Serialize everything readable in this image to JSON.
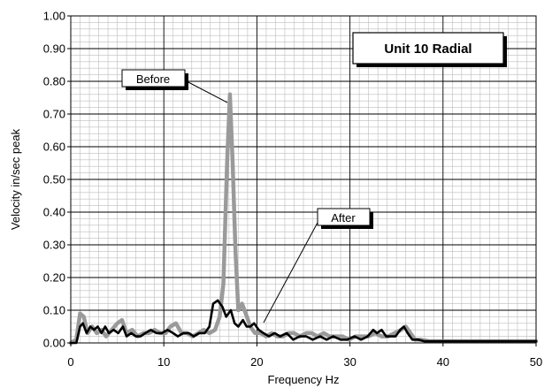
{
  "chart_data": {
    "type": "line",
    "title": "Unit 10 Radial",
    "xlabel": "Frequency Hz",
    "ylabel": "Velocity in/sec peak",
    "xlim": [
      0,
      50
    ],
    "ylim": [
      0,
      1.0
    ],
    "x_ticks": [
      "0",
      "10",
      "20",
      "30",
      "40",
      "50"
    ],
    "y_ticks": [
      "0.00",
      "0.10",
      "0.20",
      "0.30",
      "0.40",
      "0.50",
      "0.60",
      "0.70",
      "0.80",
      "0.90",
      "1.00"
    ],
    "grid": "on",
    "annotations": [
      "Before",
      "After"
    ],
    "series": [
      {
        "name": "Before",
        "color": "#9a9a9a",
        "points": [
          [
            0,
            0.0
          ],
          [
            0.6,
            0.01
          ],
          [
            1.0,
            0.09
          ],
          [
            1.4,
            0.08
          ],
          [
            1.8,
            0.03
          ],
          [
            2.3,
            0.05
          ],
          [
            2.8,
            0.03
          ],
          [
            3.3,
            0.04
          ],
          [
            3.8,
            0.02
          ],
          [
            4.4,
            0.04
          ],
          [
            5.0,
            0.06
          ],
          [
            5.5,
            0.07
          ],
          [
            6.0,
            0.03
          ],
          [
            6.6,
            0.04
          ],
          [
            7.2,
            0.02
          ],
          [
            7.8,
            0.03
          ],
          [
            8.4,
            0.03
          ],
          [
            9.0,
            0.04
          ],
          [
            9.6,
            0.03
          ],
          [
            10.2,
            0.03
          ],
          [
            10.7,
            0.05
          ],
          [
            11.3,
            0.06
          ],
          [
            11.9,
            0.03
          ],
          [
            12.5,
            0.03
          ],
          [
            13.1,
            0.02
          ],
          [
            13.7,
            0.03
          ],
          [
            14.3,
            0.04
          ],
          [
            14.9,
            0.03
          ],
          [
            15.5,
            0.04
          ],
          [
            16.0,
            0.08
          ],
          [
            16.4,
            0.18
          ],
          [
            16.8,
            0.55
          ],
          [
            17.1,
            0.76
          ],
          [
            17.4,
            0.55
          ],
          [
            17.7,
            0.28
          ],
          [
            18.0,
            0.1
          ],
          [
            18.4,
            0.12
          ],
          [
            18.8,
            0.09
          ],
          [
            19.3,
            0.05
          ],
          [
            19.8,
            0.03
          ],
          [
            20.4,
            0.03
          ],
          [
            21.0,
            0.02
          ],
          [
            21.6,
            0.03
          ],
          [
            22.2,
            0.02
          ],
          [
            22.8,
            0.02
          ],
          [
            23.4,
            0.03
          ],
          [
            24.0,
            0.03
          ],
          [
            24.6,
            0.02
          ],
          [
            25.3,
            0.03
          ],
          [
            25.9,
            0.03
          ],
          [
            26.5,
            0.02
          ],
          [
            27.2,
            0.03
          ],
          [
            27.8,
            0.02
          ],
          [
            28.5,
            0.02
          ],
          [
            29.2,
            0.02
          ],
          [
            29.9,
            0.01
          ],
          [
            30.6,
            0.02
          ],
          [
            31.3,
            0.02
          ],
          [
            32.0,
            0.02
          ],
          [
            32.7,
            0.03
          ],
          [
            33.4,
            0.02
          ],
          [
            34.1,
            0.02
          ],
          [
            34.8,
            0.03
          ],
          [
            35.5,
            0.04
          ],
          [
            36.0,
            0.05
          ],
          [
            36.5,
            0.03
          ],
          [
            37.0,
            0.01
          ],
          [
            37.6,
            0.01
          ],
          [
            38.5,
            0.005
          ],
          [
            40.0,
            0.005
          ],
          [
            42.0,
            0.005
          ],
          [
            44.0,
            0.005
          ],
          [
            46.0,
            0.005
          ],
          [
            48.0,
            0.005
          ],
          [
            50.0,
            0.005
          ]
        ]
      },
      {
        "name": "After",
        "color": "#000000",
        "points": [
          [
            0,
            0.0
          ],
          [
            0.6,
            0.0
          ],
          [
            1.0,
            0.05
          ],
          [
            1.3,
            0.06
          ],
          [
            1.7,
            0.03
          ],
          [
            2.1,
            0.05
          ],
          [
            2.5,
            0.04
          ],
          [
            2.9,
            0.05
          ],
          [
            3.3,
            0.03
          ],
          [
            3.7,
            0.05
          ],
          [
            4.1,
            0.03
          ],
          [
            4.6,
            0.04
          ],
          [
            5.1,
            0.03
          ],
          [
            5.6,
            0.05
          ],
          [
            6.0,
            0.02
          ],
          [
            6.5,
            0.03
          ],
          [
            7.0,
            0.02
          ],
          [
            7.5,
            0.02
          ],
          [
            8.0,
            0.03
          ],
          [
            8.6,
            0.04
          ],
          [
            9.2,
            0.03
          ],
          [
            9.8,
            0.03
          ],
          [
            10.4,
            0.04
          ],
          [
            11.0,
            0.03
          ],
          [
            11.5,
            0.02
          ],
          [
            12.1,
            0.03
          ],
          [
            12.7,
            0.03
          ],
          [
            13.2,
            0.02
          ],
          [
            13.8,
            0.03
          ],
          [
            14.4,
            0.03
          ],
          [
            14.9,
            0.05
          ],
          [
            15.3,
            0.12
          ],
          [
            15.8,
            0.13
          ],
          [
            16.3,
            0.11
          ],
          [
            16.7,
            0.08
          ],
          [
            17.2,
            0.1
          ],
          [
            17.6,
            0.06
          ],
          [
            18.0,
            0.05
          ],
          [
            18.5,
            0.07
          ],
          [
            18.9,
            0.05
          ],
          [
            19.3,
            0.05
          ],
          [
            19.7,
            0.06
          ],
          [
            20.2,
            0.04
          ],
          [
            20.7,
            0.03
          ],
          [
            21.3,
            0.02
          ],
          [
            21.9,
            0.03
          ],
          [
            22.5,
            0.02
          ],
          [
            23.2,
            0.03
          ],
          [
            23.9,
            0.01
          ],
          [
            24.6,
            0.02
          ],
          [
            25.3,
            0.02
          ],
          [
            26.0,
            0.01
          ],
          [
            26.8,
            0.02
          ],
          [
            27.5,
            0.01
          ],
          [
            28.2,
            0.02
          ],
          [
            29.0,
            0.01
          ],
          [
            29.7,
            0.01
          ],
          [
            30.5,
            0.02
          ],
          [
            31.2,
            0.01
          ],
          [
            31.9,
            0.02
          ],
          [
            32.5,
            0.04
          ],
          [
            32.9,
            0.03
          ],
          [
            33.4,
            0.04
          ],
          [
            33.9,
            0.02
          ],
          [
            34.4,
            0.02
          ],
          [
            34.9,
            0.02
          ],
          [
            35.4,
            0.04
          ],
          [
            35.8,
            0.05
          ],
          [
            36.2,
            0.03
          ],
          [
            36.7,
            0.01
          ],
          [
            37.3,
            0.01
          ],
          [
            38.0,
            0.005
          ],
          [
            40.0,
            0.005
          ],
          [
            42.0,
            0.005
          ],
          [
            44.0,
            0.005
          ],
          [
            46.0,
            0.005
          ],
          [
            48.0,
            0.005
          ],
          [
            50.0,
            0.005
          ]
        ]
      }
    ]
  }
}
